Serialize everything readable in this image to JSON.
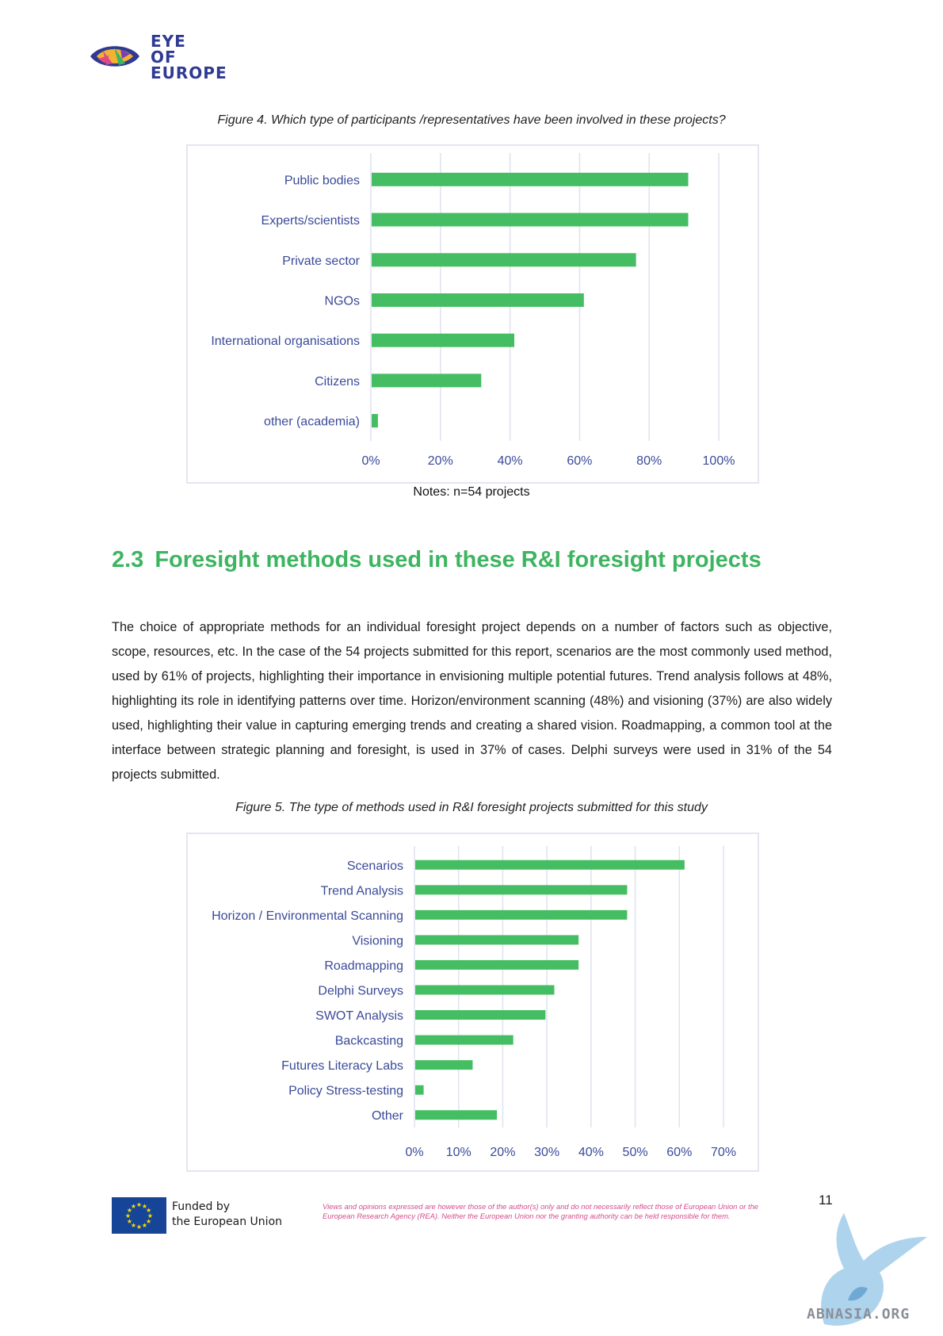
{
  "header": {
    "logo_lines": [
      "EYE",
      "OF",
      "EUROPE"
    ]
  },
  "figure4": {
    "caption": "Figure 4. Which type of participants /representatives have been involved in these projects?",
    "notes": "Notes: n=54 projects"
  },
  "section": {
    "number": "2.3",
    "title": "Foresight methods used in these R&I foresight projects",
    "paragraph": "The choice of appropriate methods for an individual foresight project depends on a number of factors such as objective, scope, resources, etc. In the case of the 54 projects submitted for this report, scenarios are the most commonly used method, used by 61% of projects, highlighting their importance in envisioning multiple potential futures. Trend analysis follows at 48%, highlighting its role in identifying patterns over time. Horizon/environment scanning (48%) and visioning (37%) are also widely used, highlighting their value in capturing emerging trends and creating a shared vision. Roadmapping, a common tool at the interface between strategic planning and foresight, is used in 37% of cases. Delphi surveys were used in 31% of the 54 projects submitted."
  },
  "figure5": {
    "caption": "Figure 5. The type of methods used in R&I foresight projects submitted for this study"
  },
  "chart_data": [
    {
      "type": "bar",
      "orientation": "horizontal",
      "categories": [
        "Public bodies",
        "Experts/scientists",
        "Private sector",
        "NGOs",
        "International organisations",
        "Citizens",
        "other (academia)"
      ],
      "values": [
        91,
        91,
        76,
        61,
        41,
        31.5,
        1.8
      ],
      "xlim": [
        0,
        100
      ],
      "ticks": [
        "0%",
        "20%",
        "40%",
        "60%",
        "80%",
        "100%"
      ],
      "grid": true,
      "bar_color": "#45bd62",
      "label_color": "#3a4a9a"
    },
    {
      "type": "bar",
      "orientation": "horizontal",
      "categories": [
        "Scenarios",
        "Trend Analysis",
        "Horizon / Environmental Scanning",
        "Visioning",
        "Roadmapping",
        "Delphi Surveys",
        "SWOT Analysis",
        "Backcasting",
        "Futures Literacy Labs",
        "Policy Stress-testing",
        "Other"
      ],
      "values": [
        61,
        48,
        48,
        37,
        37,
        31.5,
        29.5,
        22.2,
        13,
        1.9,
        18.5
      ],
      "xlim": [
        0,
        70
      ],
      "ticks": [
        "0%",
        "10%",
        "20%",
        "30%",
        "40%",
        "50%",
        "60%",
        "70%"
      ],
      "grid": true,
      "bar_color": "#45bd62",
      "label_color": "#3a4a9a"
    }
  ],
  "footer": {
    "funded_line1": "Funded by",
    "funded_line2": "the European Union",
    "disclaimer": "Views and opinions expressed are however those of the author(s) only and do not necessarily reflect those of European Union or the European Research Agency (REA). Neither the European Union nor the granting authority can be held responsible for them.",
    "page_number": "11",
    "watermark_text": "ABNASIA.ORG"
  },
  "colors": {
    "accent_green": "#3db560",
    "brand_blue": "#2f3a92",
    "disclaimer_pink": "#d64b8f",
    "eu_blue": "#164597"
  }
}
